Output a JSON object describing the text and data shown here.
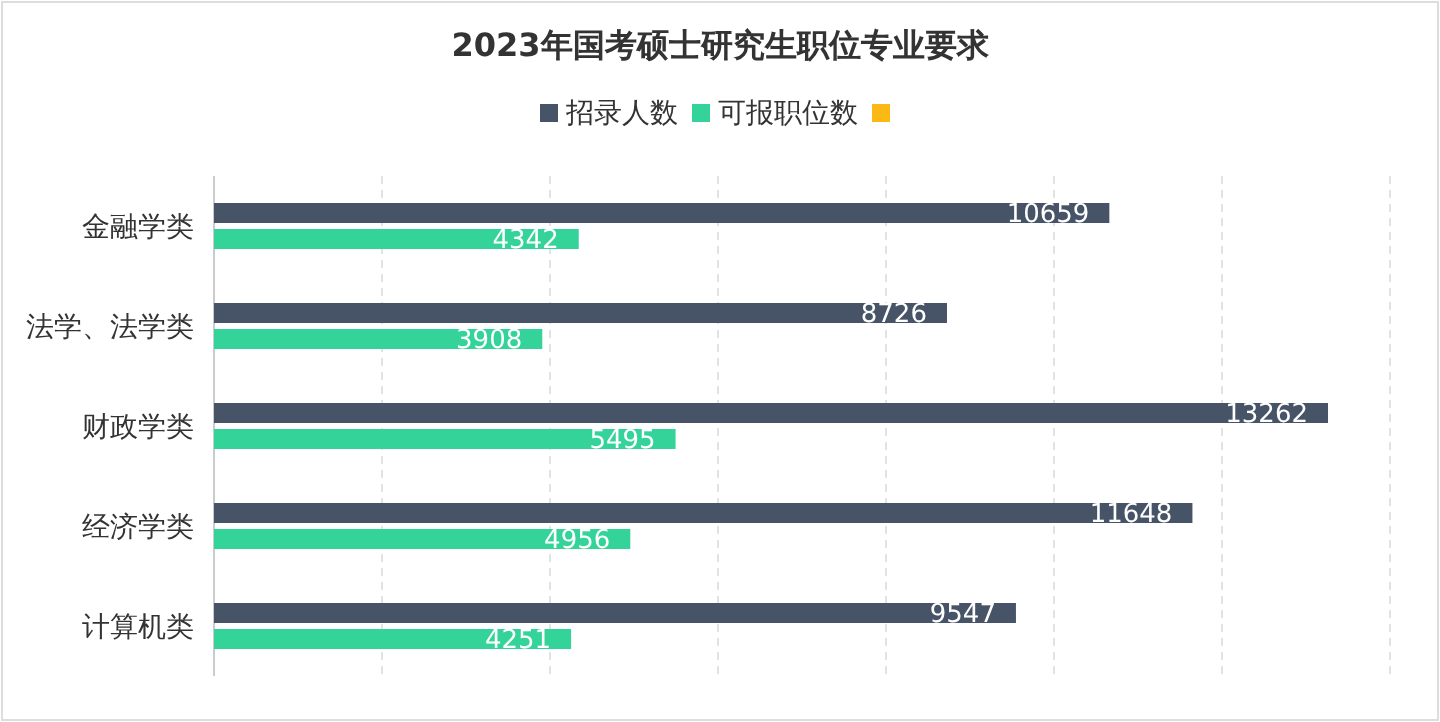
{
  "chart_data": {
    "type": "bar",
    "orientation": "horizontal",
    "title": "2023年国考硕士研究生职位专业要求",
    "categories": [
      "金融学类",
      "法学、法学类",
      "财政学类",
      "经济学类",
      "计算机类"
    ],
    "series": [
      {
        "name": "招录人数",
        "color": "#475467",
        "values": [
          10659,
          8726,
          13262,
          11648,
          9547
        ]
      },
      {
        "name": "可报职位数",
        "color": "#34d399",
        "values": [
          4342,
          3908,
          5495,
          4956,
          4251
        ]
      },
      {
        "color": "#fdb913",
        "values": [
          null,
          null,
          null,
          null,
          null
        ]
      }
    ],
    "xlim": [
      0,
      14000
    ],
    "xticks": [
      {
        "value": 0,
        "label": null
      },
      {
        "value": 2000,
        "label": null
      },
      {
        "value": 4000,
        "label": null
      },
      {
        "value": 6000,
        "label": null
      },
      {
        "value": 8000,
        "label": null
      },
      {
        "value": 10000,
        "label": null
      },
      {
        "value": 12000,
        "label": null
      },
      {
        "value": 14000,
        "label": null
      }
    ],
    "tick_labels": "y",
    "grid": "x",
    "legend": "top",
    "data_labels": true
  }
}
